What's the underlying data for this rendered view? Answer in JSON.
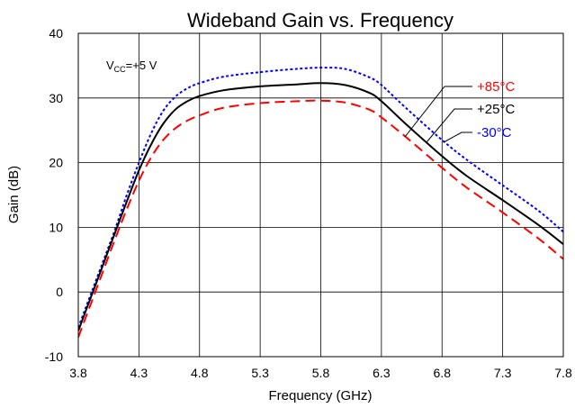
{
  "chart_data": {
    "type": "line",
    "title": "Wideband Gain vs. Frequency",
    "xlabel": "Frequency (GHz)",
    "ylabel": "Gain (dB)",
    "xlim": [
      3.8,
      7.8
    ],
    "ylim": [
      -10,
      40
    ],
    "xticks": [
      "3.8",
      "4.3",
      "4.8",
      "5.3",
      "5.8",
      "6.3",
      "6.8",
      "7.3",
      "7.8"
    ],
    "yticks": [
      "-10",
      "0",
      "10",
      "20",
      "30",
      "40"
    ],
    "grid": true,
    "condition": {
      "prefix": "V",
      "sub": "CC",
      "suffix": "=+5 V"
    },
    "series": [
      {
        "name": "-30°C",
        "color": "#0000ff",
        "dash": "dotted",
        "x": [
          3.8,
          3.9,
          4.0,
          4.1,
          4.2,
          4.3,
          4.4,
          4.5,
          4.6,
          4.7,
          4.8,
          5.0,
          5.3,
          5.6,
          5.8,
          6.0,
          6.2,
          6.3,
          6.5,
          6.8,
          7.0,
          7.3,
          7.6,
          7.8
        ],
        "y": [
          -5.5,
          -0.5,
          4.5,
          9.5,
          15.0,
          20.0,
          24.5,
          28.0,
          30.2,
          31.5,
          32.3,
          33.3,
          34.0,
          34.5,
          34.7,
          34.5,
          33.2,
          32.0,
          28.5,
          23.5,
          20.5,
          16.5,
          12.5,
          9.3
        ]
      },
      {
        "name": "+25°C",
        "color": "#000000",
        "dash": "solid",
        "x": [
          3.8,
          3.9,
          4.0,
          4.1,
          4.2,
          4.3,
          4.4,
          4.5,
          4.6,
          4.7,
          4.8,
          5.0,
          5.3,
          5.6,
          5.8,
          6.0,
          6.2,
          6.3,
          6.5,
          6.8,
          7.0,
          7.3,
          7.6,
          7.8
        ],
        "y": [
          -6.0,
          -1.0,
          4.0,
          9.0,
          14.0,
          18.8,
          22.8,
          26.0,
          28.2,
          29.5,
          30.3,
          31.2,
          31.8,
          32.1,
          32.3,
          32.0,
          30.8,
          29.5,
          26.0,
          21.0,
          18.0,
          14.2,
          10.3,
          7.4
        ]
      },
      {
        "name": "+85°C",
        "color": "#ff0000",
        "dash": "dashed",
        "x": [
          3.8,
          3.9,
          4.0,
          4.1,
          4.2,
          4.3,
          4.4,
          4.5,
          4.6,
          4.7,
          4.8,
          5.0,
          5.3,
          5.6,
          5.8,
          6.0,
          6.2,
          6.3,
          6.5,
          6.8,
          7.0,
          7.3,
          7.6,
          7.8
        ],
        "y": [
          -7.0,
          -2.0,
          3.0,
          8.0,
          12.8,
          17.2,
          20.8,
          23.5,
          25.3,
          26.5,
          27.3,
          28.5,
          29.2,
          29.5,
          29.6,
          29.3,
          28.2,
          27.0,
          24.0,
          19.2,
          16.2,
          12.3,
          8.2,
          5.1
        ]
      }
    ]
  }
}
